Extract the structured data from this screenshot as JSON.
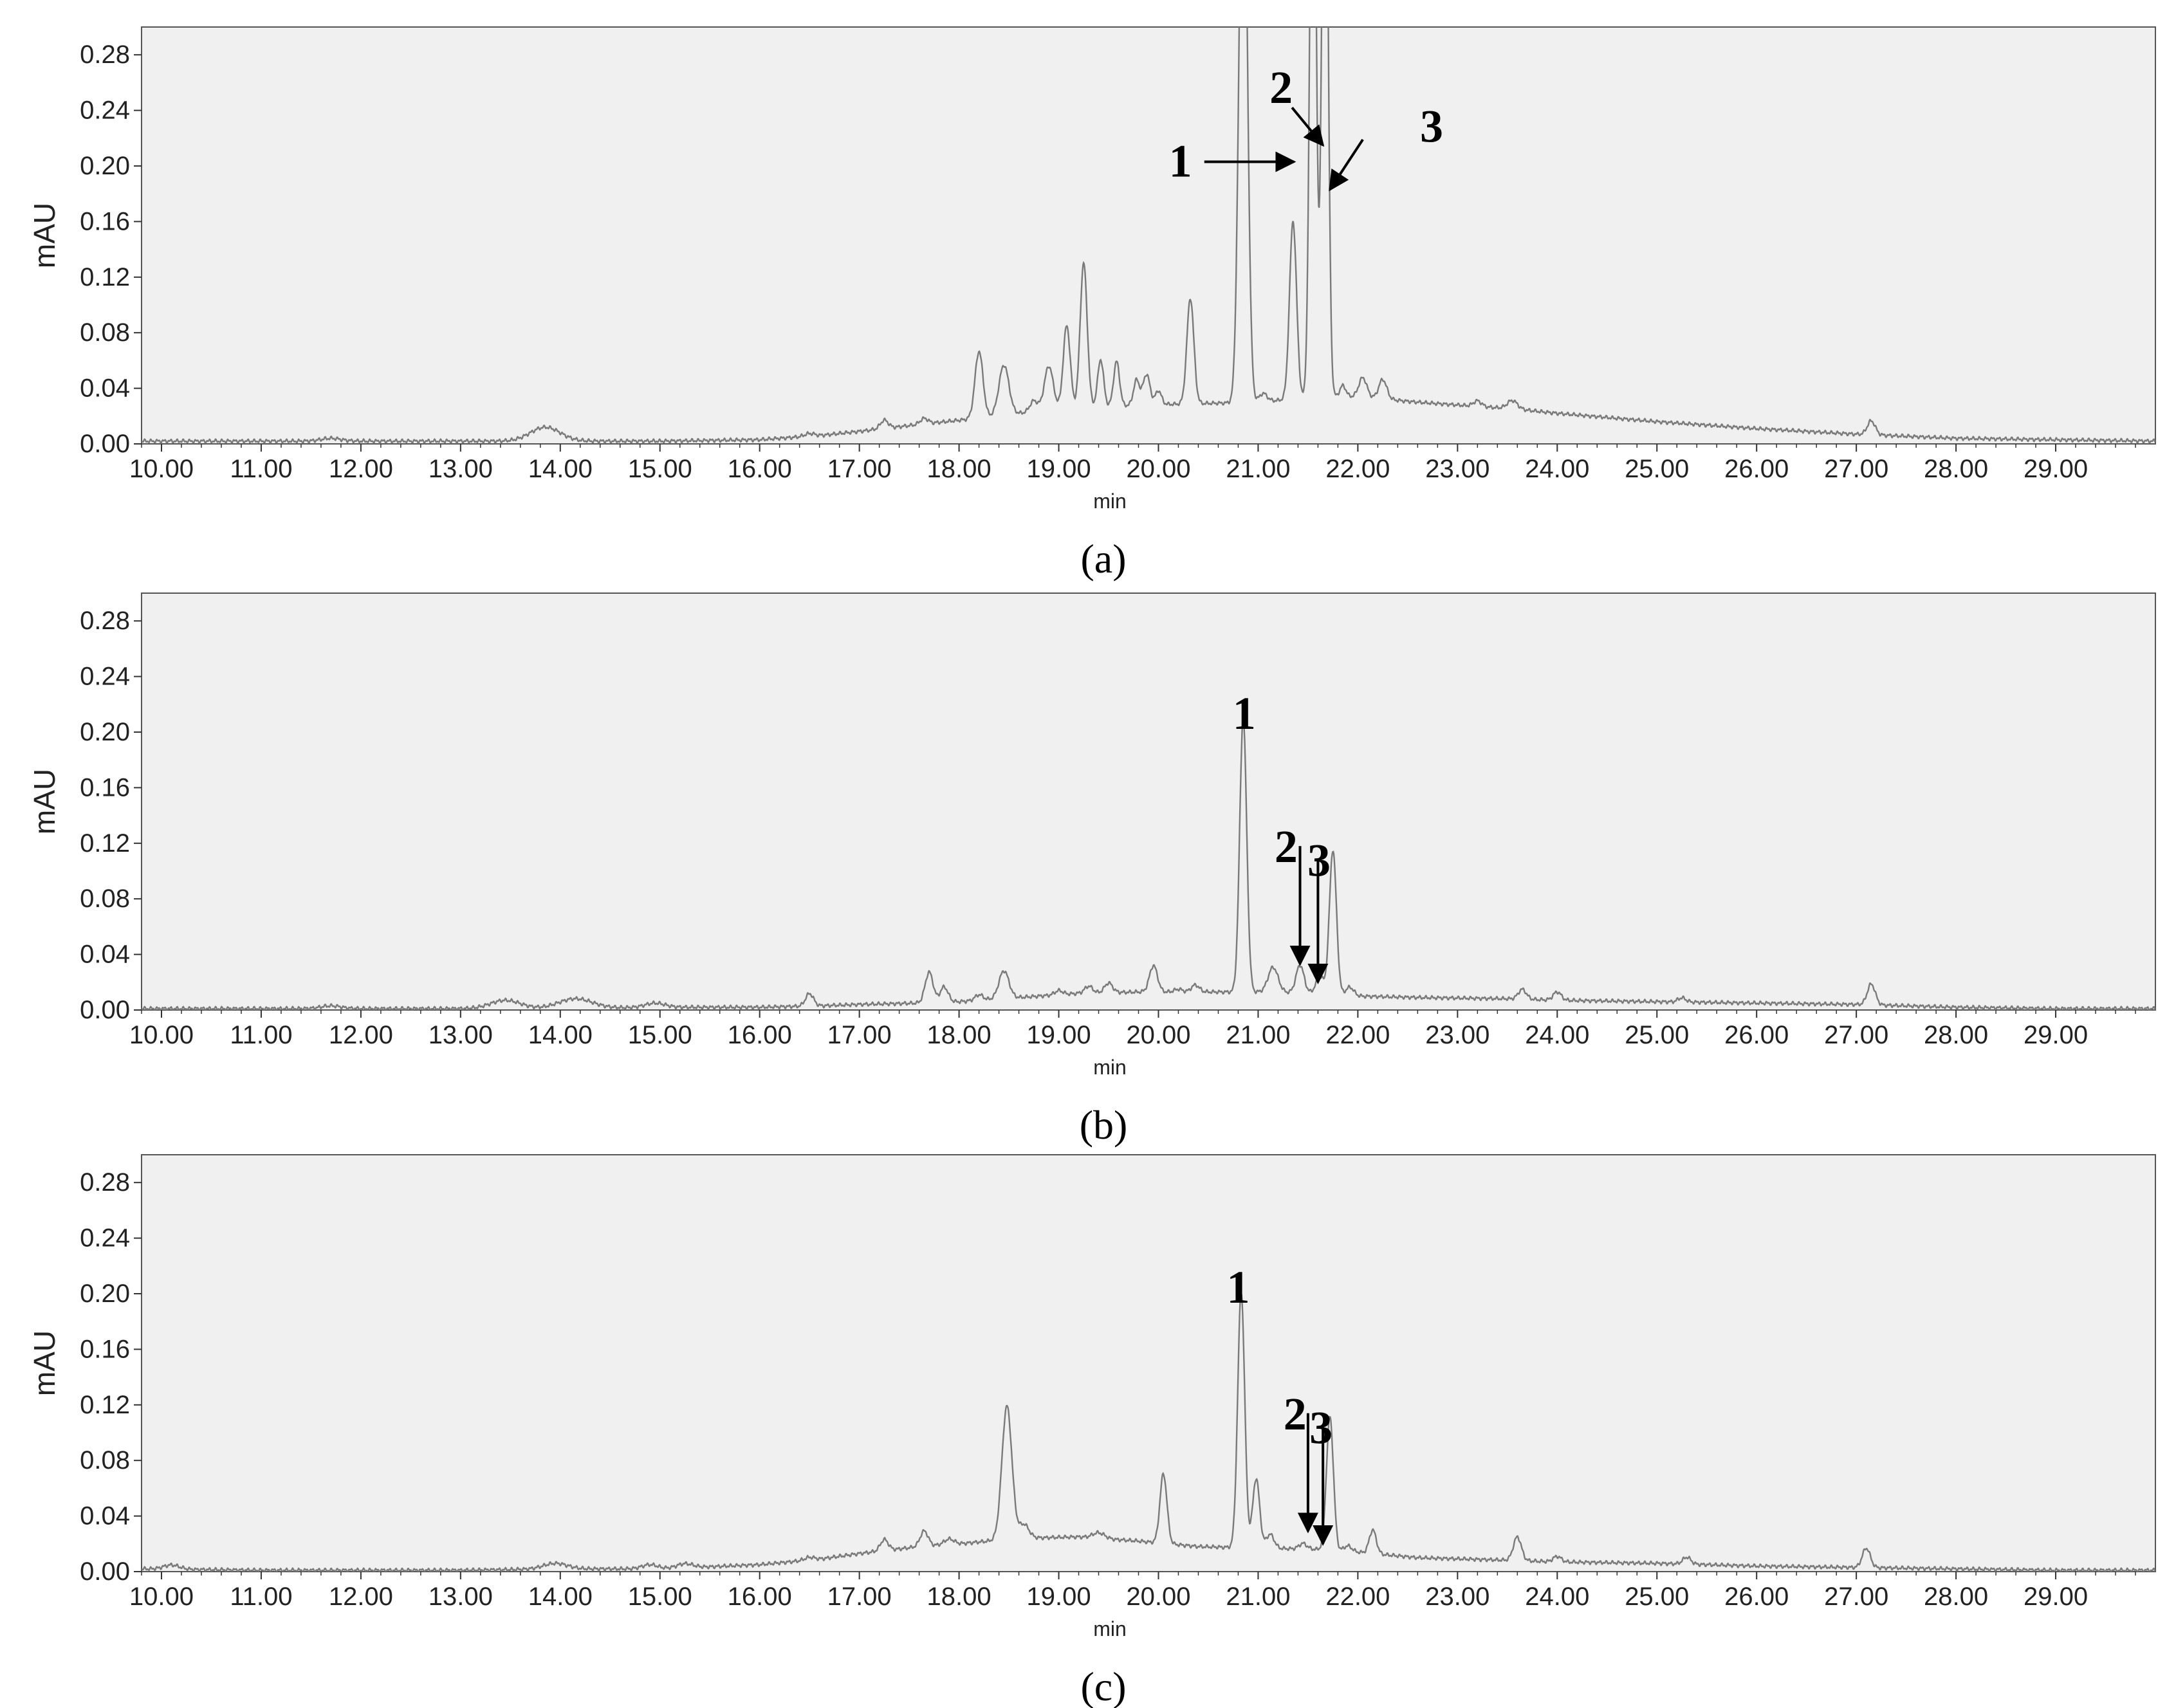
{
  "chart_data": [
    {
      "type": "line",
      "caption": "(a)",
      "xlabel": "min",
      "ylabel": "mAU",
      "xlim": [
        9.8,
        30.0
      ],
      "ylim": [
        0.0,
        0.3
      ],
      "x_ticks": [
        "10.00",
        "11.00",
        "12.00",
        "13.00",
        "14.00",
        "15.00",
        "16.00",
        "17.00",
        "18.00",
        "19.00",
        "20.00",
        "21.00",
        "22.00",
        "23.00",
        "24.00",
        "25.00",
        "26.00",
        "27.00",
        "28.00",
        "29.00"
      ],
      "y_ticks": [
        "0.00",
        "0.04",
        "0.08",
        "0.12",
        "0.16",
        "0.20",
        "0.24",
        "0.28"
      ],
      "baseline": [
        [
          9.8,
          0.002
        ],
        [
          11.0,
          0.002
        ],
        [
          12.0,
          0.002
        ],
        [
          13.0,
          0.002
        ],
        [
          14.0,
          0.002
        ],
        [
          15.0,
          0.002
        ],
        [
          16.0,
          0.003
        ],
        [
          16.6,
          0.006
        ],
        [
          17.0,
          0.009
        ],
        [
          17.6,
          0.014
        ],
        [
          18.0,
          0.017
        ],
        [
          18.6,
          0.022
        ],
        [
          19.2,
          0.026
        ],
        [
          19.8,
          0.028
        ],
        [
          20.4,
          0.029
        ],
        [
          21.0,
          0.03
        ],
        [
          21.6,
          0.034
        ],
        [
          22.0,
          0.034
        ],
        [
          22.6,
          0.03
        ],
        [
          23.6,
          0.025
        ],
        [
          24.0,
          0.022
        ],
        [
          25.0,
          0.016
        ],
        [
          26.0,
          0.011
        ],
        [
          27.0,
          0.007
        ],
        [
          28.0,
          0.004
        ],
        [
          29.0,
          0.003
        ],
        [
          30.0,
          0.002
        ]
      ],
      "peaks": [
        {
          "x": 11.7,
          "h": 0.002,
          "w": 0.1
        },
        {
          "x": 13.85,
          "h": 0.01,
          "w": 0.15
        },
        {
          "x": 16.5,
          "h": 0.002,
          "w": 0.05
        },
        {
          "x": 17.25,
          "h": 0.006,
          "w": 0.04
        },
        {
          "x": 17.65,
          "h": 0.004,
          "w": 0.04
        },
        {
          "x": 18.2,
          "h": 0.048,
          "w": 0.04
        },
        {
          "x": 18.45,
          "h": 0.036,
          "w": 0.05
        },
        {
          "x": 18.75,
          "h": 0.008,
          "w": 0.04
        },
        {
          "x": 18.9,
          "h": 0.032,
          "w": 0.045
        },
        {
          "x": 19.08,
          "h": 0.06,
          "w": 0.035
        },
        {
          "x": 19.25,
          "h": 0.104,
          "w": 0.035
        },
        {
          "x": 19.42,
          "h": 0.034,
          "w": 0.03
        },
        {
          "x": 19.58,
          "h": 0.032,
          "w": 0.03
        },
        {
          "x": 19.78,
          "h": 0.018,
          "w": 0.03
        },
        {
          "x": 19.88,
          "h": 0.022,
          "w": 0.035
        },
        {
          "x": 20.0,
          "h": 0.01,
          "w": 0.03
        },
        {
          "x": 20.32,
          "h": 0.076,
          "w": 0.035
        },
        {
          "x": 20.85,
          "h": 0.45,
          "w": 0.04
        },
        {
          "x": 21.05,
          "h": 0.006,
          "w": 0.04
        },
        {
          "x": 21.35,
          "h": 0.128,
          "w": 0.035
        },
        {
          "x": 21.55,
          "h": 0.5,
          "w": 0.03
        },
        {
          "x": 21.67,
          "h": 0.5,
          "w": 0.03
        },
        {
          "x": 21.85,
          "h": 0.008,
          "w": 0.03
        },
        {
          "x": 22.05,
          "h": 0.014,
          "w": 0.04
        },
        {
          "x": 22.25,
          "h": 0.014,
          "w": 0.04
        },
        {
          "x": 23.2,
          "h": 0.004,
          "w": 0.04
        },
        {
          "x": 23.55,
          "h": 0.006,
          "w": 0.05
        },
        {
          "x": 27.15,
          "h": 0.01,
          "w": 0.04
        }
      ],
      "annotations": [
        {
          "label": "1",
          "text_x": 20.22,
          "text_y": 0.204,
          "arrow": [
            [
              20.46,
              0.203
            ],
            [
              21.36,
              0.203
            ]
          ]
        },
        {
          "label": "2",
          "text_x": 21.23,
          "text_y": 0.257,
          "arrow": [
            [
              21.34,
              0.242
            ],
            [
              21.65,
              0.215
            ]
          ]
        },
        {
          "label": "3",
          "text_x": 22.74,
          "text_y": 0.229,
          "arrow": [
            [
              22.05,
              0.219
            ],
            [
              21.72,
              0.183
            ]
          ]
        }
      ]
    },
    {
      "type": "line",
      "caption": "(b)",
      "xlabel": "min",
      "ylabel": "mAU",
      "xlim": [
        9.8,
        30.0
      ],
      "ylim": [
        0.0,
        0.3
      ],
      "x_ticks": [
        "10.00",
        "11.00",
        "12.00",
        "13.00",
        "14.00",
        "15.00",
        "16.00",
        "17.00",
        "18.00",
        "19.00",
        "20.00",
        "21.00",
        "22.00",
        "23.00",
        "24.00",
        "25.00",
        "26.00",
        "27.00",
        "28.00",
        "29.00"
      ],
      "y_ticks": [
        "0.00",
        "0.04",
        "0.08",
        "0.12",
        "0.16",
        "0.20",
        "0.24",
        "0.28"
      ],
      "baseline": [
        [
          9.8,
          0.001
        ],
        [
          11.0,
          0.001
        ],
        [
          12.0,
          0.001
        ],
        [
          13.0,
          0.001
        ],
        [
          14.0,
          0.001
        ],
        [
          15.0,
          0.002
        ],
        [
          16.0,
          0.002
        ],
        [
          16.6,
          0.003
        ],
        [
          17.0,
          0.004
        ],
        [
          17.6,
          0.005
        ],
        [
          18.0,
          0.006
        ],
        [
          18.6,
          0.009
        ],
        [
          19.2,
          0.012
        ],
        [
          19.8,
          0.013
        ],
        [
          20.4,
          0.013
        ],
        [
          21.0,
          0.013
        ],
        [
          21.6,
          0.012
        ],
        [
          22.0,
          0.01
        ],
        [
          22.6,
          0.009
        ],
        [
          23.6,
          0.008
        ],
        [
          24.0,
          0.007
        ],
        [
          25.0,
          0.006
        ],
        [
          26.0,
          0.005
        ],
        [
          27.0,
          0.004
        ],
        [
          28.0,
          0.002
        ],
        [
          29.0,
          0.001
        ],
        [
          30.0,
          0.001
        ]
      ],
      "peaks": [
        {
          "x": 11.7,
          "h": 0.002,
          "w": 0.1
        },
        {
          "x": 13.45,
          "h": 0.006,
          "w": 0.15
        },
        {
          "x": 14.15,
          "h": 0.007,
          "w": 0.17
        },
        {
          "x": 14.95,
          "h": 0.003,
          "w": 0.1
        },
        {
          "x": 16.5,
          "h": 0.009,
          "w": 0.04
        },
        {
          "x": 17.7,
          "h": 0.022,
          "w": 0.04
        },
        {
          "x": 17.85,
          "h": 0.011,
          "w": 0.04
        },
        {
          "x": 18.2,
          "h": 0.004,
          "w": 0.04
        },
        {
          "x": 18.45,
          "h": 0.02,
          "w": 0.05
        },
        {
          "x": 19.0,
          "h": 0.003,
          "w": 0.04
        },
        {
          "x": 19.3,
          "h": 0.005,
          "w": 0.04
        },
        {
          "x": 19.5,
          "h": 0.007,
          "w": 0.04
        },
        {
          "x": 19.95,
          "h": 0.019,
          "w": 0.04
        },
        {
          "x": 20.2,
          "h": 0.002,
          "w": 0.04
        },
        {
          "x": 20.37,
          "h": 0.005,
          "w": 0.04
        },
        {
          "x": 20.85,
          "h": 0.197,
          "w": 0.035
        },
        {
          "x": 21.15,
          "h": 0.018,
          "w": 0.05
        },
        {
          "x": 21.42,
          "h": 0.02,
          "w": 0.04
        },
        {
          "x": 21.62,
          "h": 0.012,
          "w": 0.04
        },
        {
          "x": 21.75,
          "h": 0.104,
          "w": 0.035
        },
        {
          "x": 21.92,
          "h": 0.006,
          "w": 0.04
        },
        {
          "x": 23.65,
          "h": 0.007,
          "w": 0.04
        },
        {
          "x": 24.0,
          "h": 0.006,
          "w": 0.04
        },
        {
          "x": 25.25,
          "h": 0.003,
          "w": 0.04
        },
        {
          "x": 27.15,
          "h": 0.015,
          "w": 0.04
        }
      ],
      "annotations": [
        {
          "label": "1",
          "text_x": 20.86,
          "text_y": 0.214,
          "arrow": null
        },
        {
          "label": "2",
          "text_x": 21.28,
          "text_y": 0.118,
          "arrow": [
            [
              21.42,
              0.118
            ],
            [
              21.42,
              0.033
            ]
          ]
        },
        {
          "label": "3",
          "text_x": 21.61,
          "text_y": 0.108,
          "arrow": [
            [
              21.6,
              0.108
            ],
            [
              21.6,
              0.02
            ]
          ]
        }
      ]
    },
    {
      "type": "line",
      "caption": "(c)",
      "xlabel": "min",
      "ylabel": "mAU",
      "xlim": [
        9.8,
        30.0
      ],
      "ylim": [
        0.0,
        0.3
      ],
      "x_ticks": [
        "10.00",
        "11.00",
        "12.00",
        "13.00",
        "14.00",
        "15.00",
        "16.00",
        "17.00",
        "18.00",
        "19.00",
        "20.00",
        "21.00",
        "22.00",
        "23.00",
        "24.00",
        "25.00",
        "26.00",
        "27.00",
        "28.00",
        "29.00"
      ],
      "y_ticks": [
        "0.00",
        "0.04",
        "0.08",
        "0.12",
        "0.16",
        "0.20",
        "0.24",
        "0.28"
      ],
      "baseline": [
        [
          9.8,
          0.002
        ],
        [
          11.0,
          0.001
        ],
        [
          12.0,
          0.001
        ],
        [
          13.0,
          0.001
        ],
        [
          14.0,
          0.002
        ],
        [
          15.0,
          0.002
        ],
        [
          16.0,
          0.005
        ],
        [
          16.6,
          0.009
        ],
        [
          17.0,
          0.013
        ],
        [
          17.6,
          0.018
        ],
        [
          18.0,
          0.02
        ],
        [
          18.6,
          0.024
        ],
        [
          19.2,
          0.025
        ],
        [
          19.8,
          0.022
        ],
        [
          20.4,
          0.018
        ],
        [
          21.0,
          0.017
        ],
        [
          21.6,
          0.016
        ],
        [
          22.0,
          0.014
        ],
        [
          22.6,
          0.01
        ],
        [
          23.6,
          0.008
        ],
        [
          24.0,
          0.007
        ],
        [
          25.0,
          0.006
        ],
        [
          26.0,
          0.004
        ],
        [
          27.0,
          0.003
        ],
        [
          28.0,
          0.002
        ],
        [
          29.0,
          0.001
        ],
        [
          30.0,
          0.001
        ]
      ],
      "peaks": [
        {
          "x": 10.1,
          "h": 0.003,
          "w": 0.08
        },
        {
          "x": 13.95,
          "h": 0.004,
          "w": 0.12
        },
        {
          "x": 14.9,
          "h": 0.003,
          "w": 0.08
        },
        {
          "x": 15.25,
          "h": 0.003,
          "w": 0.08
        },
        {
          "x": 16.5,
          "h": 0.002,
          "w": 0.05
        },
        {
          "x": 17.25,
          "h": 0.008,
          "w": 0.04
        },
        {
          "x": 17.65,
          "h": 0.011,
          "w": 0.04
        },
        {
          "x": 17.9,
          "h": 0.004,
          "w": 0.05
        },
        {
          "x": 18.48,
          "h": 0.096,
          "w": 0.05
        },
        {
          "x": 18.65,
          "h": 0.01,
          "w": 0.05
        },
        {
          "x": 19.4,
          "h": 0.004,
          "w": 0.06
        },
        {
          "x": 20.05,
          "h": 0.05,
          "w": 0.035
        },
        {
          "x": 20.83,
          "h": 0.184,
          "w": 0.035
        },
        {
          "x": 20.98,
          "h": 0.05,
          "w": 0.035
        },
        {
          "x": 21.12,
          "h": 0.01,
          "w": 0.04
        },
        {
          "x": 21.45,
          "h": 0.004,
          "w": 0.04
        },
        {
          "x": 21.72,
          "h": 0.096,
          "w": 0.035
        },
        {
          "x": 21.9,
          "h": 0.004,
          "w": 0.04
        },
        {
          "x": 22.15,
          "h": 0.017,
          "w": 0.035
        },
        {
          "x": 23.6,
          "h": 0.017,
          "w": 0.04
        },
        {
          "x": 24.0,
          "h": 0.004,
          "w": 0.04
        },
        {
          "x": 25.3,
          "h": 0.005,
          "w": 0.04
        },
        {
          "x": 27.1,
          "h": 0.014,
          "w": 0.04
        }
      ],
      "annotations": [
        {
          "label": "1",
          "text_x": 20.8,
          "text_y": 0.205,
          "arrow": null
        },
        {
          "label": "2",
          "text_x": 21.37,
          "text_y": 0.114,
          "arrow": [
            [
              21.5,
              0.114
            ],
            [
              21.5,
              0.029
            ]
          ]
        },
        {
          "label": "3",
          "text_x": 21.63,
          "text_y": 0.104,
          "arrow": [
            [
              21.65,
              0.104
            ],
            [
              21.65,
              0.02
            ]
          ]
        }
      ]
    }
  ]
}
